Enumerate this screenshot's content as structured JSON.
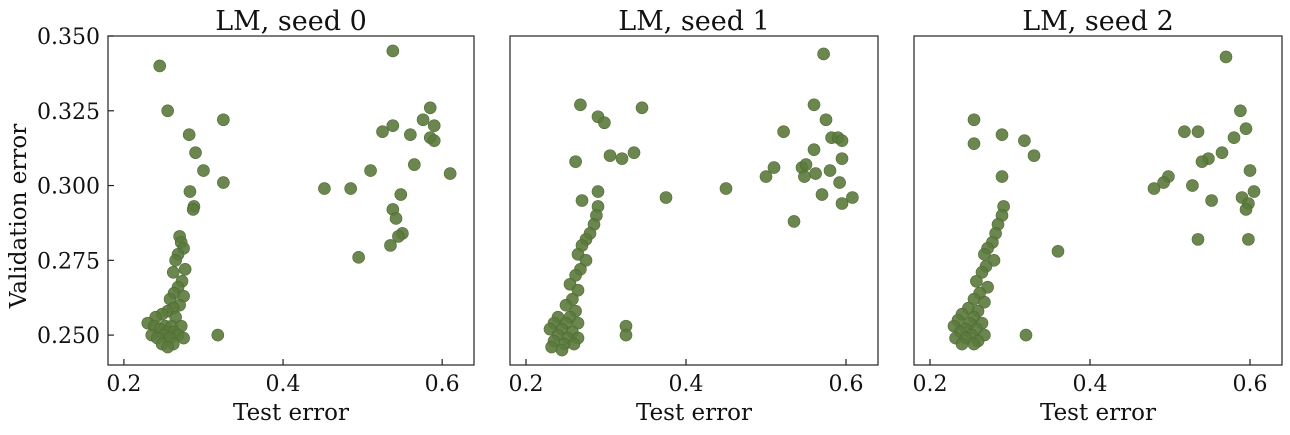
{
  "figure": {
    "ylabel": "Validation error"
  },
  "chart_data": [
    {
      "type": "scatter",
      "title": "LM, seed 0",
      "xlabel": "Test error",
      "ylabel": "Validation error",
      "xlim": [
        0.18,
        0.64
      ],
      "ylim": [
        0.24,
        0.35
      ],
      "xticks": [
        "0.2",
        "0.4",
        "0.6"
      ],
      "xtick_values": [
        0.2,
        0.4,
        0.6
      ],
      "yticks": [
        "0.250",
        "0.275",
        "0.300",
        "0.325",
        "0.350"
      ],
      "ytick_values": [
        0.25,
        0.275,
        0.3,
        0.325,
        0.35
      ],
      "color": "#5b7a3c",
      "points": [
        [
          0.245,
          0.34
        ],
        [
          0.255,
          0.325
        ],
        [
          0.282,
          0.317
        ],
        [
          0.325,
          0.322
        ],
        [
          0.29,
          0.311
        ],
        [
          0.3,
          0.305
        ],
        [
          0.325,
          0.301
        ],
        [
          0.283,
          0.298
        ],
        [
          0.288,
          0.293
        ],
        [
          0.287,
          0.292
        ],
        [
          0.318,
          0.25
        ],
        [
          0.27,
          0.283
        ],
        [
          0.272,
          0.281
        ],
        [
          0.275,
          0.279
        ],
        [
          0.268,
          0.277
        ],
        [
          0.265,
          0.275
        ],
        [
          0.277,
          0.272
        ],
        [
          0.262,
          0.271
        ],
        [
          0.273,
          0.268
        ],
        [
          0.268,
          0.266
        ],
        [
          0.263,
          0.264
        ],
        [
          0.275,
          0.263
        ],
        [
          0.258,
          0.262
        ],
        [
          0.27,
          0.26
        ],
        [
          0.262,
          0.259
        ],
        [
          0.255,
          0.258
        ],
        [
          0.248,
          0.257
        ],
        [
          0.24,
          0.256
        ],
        [
          0.265,
          0.256
        ],
        [
          0.23,
          0.254
        ],
        [
          0.238,
          0.253
        ],
        [
          0.252,
          0.253
        ],
        [
          0.26,
          0.253
        ],
        [
          0.272,
          0.253
        ],
        [
          0.245,
          0.252
        ],
        [
          0.255,
          0.251
        ],
        [
          0.263,
          0.251
        ],
        [
          0.235,
          0.25
        ],
        [
          0.25,
          0.25
        ],
        [
          0.268,
          0.25
        ],
        [
          0.242,
          0.249
        ],
        [
          0.258,
          0.249
        ],
        [
          0.275,
          0.249
        ],
        [
          0.248,
          0.247
        ],
        [
          0.262,
          0.247
        ],
        [
          0.255,
          0.246
        ],
        [
          0.538,
          0.345
        ],
        [
          0.585,
          0.326
        ],
        [
          0.576,
          0.322
        ],
        [
          0.59,
          0.32
        ],
        [
          0.538,
          0.32
        ],
        [
          0.525,
          0.318
        ],
        [
          0.56,
          0.317
        ],
        [
          0.585,
          0.316
        ],
        [
          0.59,
          0.315
        ],
        [
          0.565,
          0.307
        ],
        [
          0.51,
          0.305
        ],
        [
          0.61,
          0.304
        ],
        [
          0.452,
          0.299
        ],
        [
          0.485,
          0.299
        ],
        [
          0.548,
          0.297
        ],
        [
          0.538,
          0.292
        ],
        [
          0.542,
          0.289
        ],
        [
          0.55,
          0.284
        ],
        [
          0.545,
          0.283
        ],
        [
          0.535,
          0.28
        ],
        [
          0.495,
          0.276
        ]
      ]
    },
    {
      "type": "scatter",
      "title": "LM, seed 1",
      "xlabel": "Test error",
      "ylabel": "",
      "xlim": [
        0.18,
        0.64
      ],
      "ylim": [
        0.24,
        0.35
      ],
      "xticks": [
        "0.2",
        "0.4",
        "0.6"
      ],
      "xtick_values": [
        0.2,
        0.4,
        0.6
      ],
      "yticks": [],
      "color": "#5b7a3c",
      "points": [
        [
          0.268,
          0.327
        ],
        [
          0.345,
          0.326
        ],
        [
          0.29,
          0.323
        ],
        [
          0.298,
          0.321
        ],
        [
          0.335,
          0.311
        ],
        [
          0.305,
          0.31
        ],
        [
          0.32,
          0.309
        ],
        [
          0.262,
          0.308
        ],
        [
          0.29,
          0.298
        ],
        [
          0.27,
          0.295
        ],
        [
          0.29,
          0.293
        ],
        [
          0.288,
          0.29
        ],
        [
          0.285,
          0.287
        ],
        [
          0.28,
          0.284
        ],
        [
          0.275,
          0.282
        ],
        [
          0.27,
          0.28
        ],
        [
          0.265,
          0.277
        ],
        [
          0.275,
          0.275
        ],
        [
          0.268,
          0.272
        ],
        [
          0.262,
          0.27
        ],
        [
          0.255,
          0.267
        ],
        [
          0.265,
          0.265
        ],
        [
          0.258,
          0.262
        ],
        [
          0.25,
          0.26
        ],
        [
          0.262,
          0.258
        ],
        [
          0.24,
          0.256
        ],
        [
          0.255,
          0.256
        ],
        [
          0.235,
          0.254
        ],
        [
          0.25,
          0.254
        ],
        [
          0.265,
          0.254
        ],
        [
          0.23,
          0.252
        ],
        [
          0.245,
          0.252
        ],
        [
          0.258,
          0.251
        ],
        [
          0.24,
          0.25
        ],
        [
          0.252,
          0.249
        ],
        [
          0.265,
          0.249
        ],
        [
          0.235,
          0.248
        ],
        [
          0.248,
          0.247
        ],
        [
          0.26,
          0.247
        ],
        [
          0.232,
          0.246
        ],
        [
          0.245,
          0.245
        ],
        [
          0.325,
          0.253
        ],
        [
          0.325,
          0.25
        ],
        [
          0.375,
          0.296
        ],
        [
          0.45,
          0.299
        ],
        [
          0.572,
          0.344
        ],
        [
          0.56,
          0.327
        ],
        [
          0.575,
          0.322
        ],
        [
          0.522,
          0.318
        ],
        [
          0.582,
          0.316
        ],
        [
          0.59,
          0.316
        ],
        [
          0.595,
          0.315
        ],
        [
          0.56,
          0.312
        ],
        [
          0.595,
          0.309
        ],
        [
          0.51,
          0.306
        ],
        [
          0.545,
          0.306
        ],
        [
          0.55,
          0.307
        ],
        [
          0.58,
          0.305
        ],
        [
          0.562,
          0.304
        ],
        [
          0.548,
          0.303
        ],
        [
          0.5,
          0.303
        ],
        [
          0.592,
          0.301
        ],
        [
          0.57,
          0.297
        ],
        [
          0.608,
          0.296
        ],
        [
          0.595,
          0.294
        ],
        [
          0.535,
          0.288
        ]
      ]
    },
    {
      "type": "scatter",
      "title": "LM, seed 2",
      "xlabel": "Test error",
      "ylabel": "",
      "xlim": [
        0.18,
        0.64
      ],
      "ylim": [
        0.24,
        0.35
      ],
      "xticks": [
        "0.2",
        "0.4",
        "0.6"
      ],
      "xtick_values": [
        0.2,
        0.4,
        0.6
      ],
      "yticks": [],
      "color": "#5b7a3c",
      "points": [
        [
          0.255,
          0.322
        ],
        [
          0.29,
          0.317
        ],
        [
          0.318,
          0.315
        ],
        [
          0.255,
          0.314
        ],
        [
          0.33,
          0.31
        ],
        [
          0.29,
          0.303
        ],
        [
          0.292,
          0.293
        ],
        [
          0.29,
          0.29
        ],
        [
          0.285,
          0.287
        ],
        [
          0.282,
          0.284
        ],
        [
          0.278,
          0.281
        ],
        [
          0.272,
          0.279
        ],
        [
          0.268,
          0.277
        ],
        [
          0.28,
          0.275
        ],
        [
          0.27,
          0.273
        ],
        [
          0.265,
          0.271
        ],
        [
          0.258,
          0.268
        ],
        [
          0.272,
          0.266
        ],
        [
          0.262,
          0.264
        ],
        [
          0.255,
          0.262
        ],
        [
          0.268,
          0.261
        ],
        [
          0.248,
          0.259
        ],
        [
          0.26,
          0.258
        ],
        [
          0.24,
          0.257
        ],
        [
          0.255,
          0.256
        ],
        [
          0.235,
          0.255
        ],
        [
          0.25,
          0.254
        ],
        [
          0.265,
          0.254
        ],
        [
          0.23,
          0.253
        ],
        [
          0.245,
          0.252
        ],
        [
          0.258,
          0.252
        ],
        [
          0.238,
          0.251
        ],
        [
          0.252,
          0.25
        ],
        [
          0.268,
          0.25
        ],
        [
          0.232,
          0.249
        ],
        [
          0.245,
          0.249
        ],
        [
          0.26,
          0.248
        ],
        [
          0.24,
          0.247
        ],
        [
          0.255,
          0.247
        ],
        [
          0.32,
          0.25
        ],
        [
          0.36,
          0.278
        ],
        [
          0.57,
          0.343
        ],
        [
          0.588,
          0.325
        ],
        [
          0.595,
          0.319
        ],
        [
          0.518,
          0.318
        ],
        [
          0.535,
          0.318
        ],
        [
          0.58,
          0.316
        ],
        [
          0.565,
          0.311
        ],
        [
          0.548,
          0.309
        ],
        [
          0.54,
          0.308
        ],
        [
          0.6,
          0.305
        ],
        [
          0.498,
          0.303
        ],
        [
          0.492,
          0.301
        ],
        [
          0.528,
          0.3
        ],
        [
          0.48,
          0.299
        ],
        [
          0.605,
          0.298
        ],
        [
          0.59,
          0.296
        ],
        [
          0.598,
          0.294
        ],
        [
          0.552,
          0.295
        ],
        [
          0.595,
          0.292
        ],
        [
          0.535,
          0.282
        ],
        [
          0.598,
          0.282
        ]
      ]
    }
  ]
}
